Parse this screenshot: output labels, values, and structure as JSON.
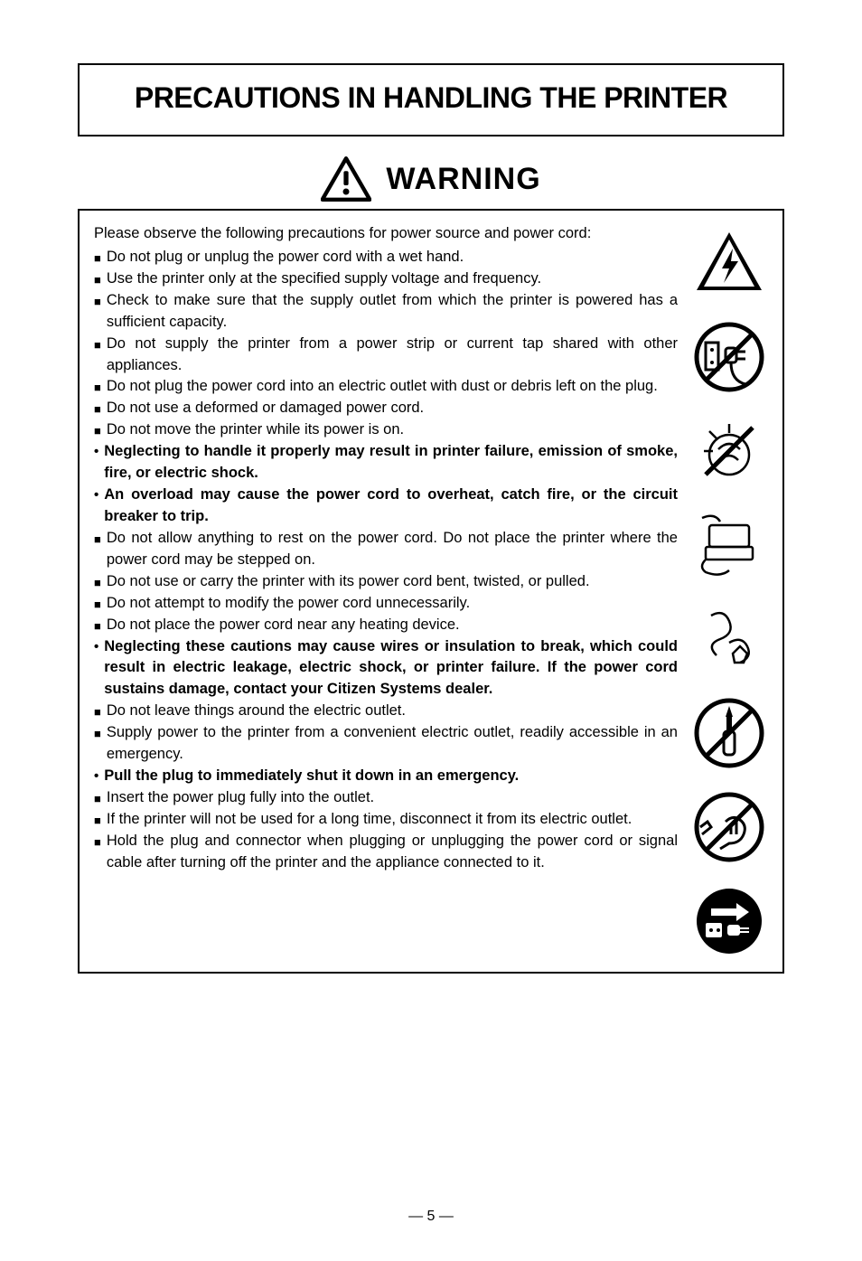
{
  "title": "PRECAUTIONS IN HANDLING THE PRINTER",
  "warning_label": "WARNING",
  "intro": "Please observe the following precautions for power source and power cord:",
  "items": [
    {
      "type": "square",
      "text": "Do not plug or unplug the power cord with a wet hand."
    },
    {
      "type": "square",
      "text": "Use the printer only at the specified supply voltage and frequency."
    },
    {
      "type": "square",
      "text": "Check to make sure that the supply outlet from which the printer is powered has a sufficient capacity."
    },
    {
      "type": "square",
      "text": "Do not supply the printer from a power strip or current tap shared with other appliances."
    },
    {
      "type": "square",
      "text": "Do not plug the power cord into an electric outlet with dust or debris left on the plug."
    },
    {
      "type": "square",
      "text": "Do not use a deformed or damaged power cord."
    },
    {
      "type": "square",
      "text": "Do not move the printer while its power is on."
    },
    {
      "type": "bullet",
      "bold": true,
      "text": "Neglecting to handle it properly may result in printer failure, emission of smoke, fire, or electric shock."
    },
    {
      "type": "bullet",
      "bold": true,
      "text": "An overload may cause the power cord to overheat, catch fire, or the circuit breaker to trip."
    },
    {
      "type": "square",
      "text": "Do not allow anything to rest on the power cord.  Do not place the printer where the power cord may be stepped on."
    },
    {
      "type": "square",
      "text": "Do not use or carry the printer with its power cord bent, twisted, or pulled."
    },
    {
      "type": "square",
      "text": "Do not attempt to modify the power cord unnecessarily."
    },
    {
      "type": "square",
      "text": "Do not place the power cord near any heating device."
    },
    {
      "type": "bullet",
      "bold": true,
      "text": "Neglecting these cautions may cause wires or insulation to break, which could result in electric leakage, electric shock, or printer failure. If the power cord sustains damage, contact your Citizen Systems dealer."
    },
    {
      "type": "square",
      "text": "Do not leave things around the electric outlet."
    },
    {
      "type": "square",
      "text": "Supply power to the printer from a convenient electric outlet, readily accessible in an emergency."
    },
    {
      "type": "bullet",
      "bold": true,
      "text": "Pull the plug to immediately shut it down in an emergency."
    },
    {
      "type": "square",
      "text": "Insert the power plug fully into the outlet."
    },
    {
      "type": "square",
      "text": "If the printer will not be used for a long time, disconnect it from its electric outlet."
    },
    {
      "type": "square",
      "text": "Hold the plug and connector when plugging or unplugging the power cord or signal cable after turning off the printer and the appliance connected to it."
    }
  ],
  "page_number": "— 5 —",
  "colors": {
    "text": "#000000",
    "bg": "#ffffff",
    "border": "#000000"
  },
  "icons": [
    "hazard-triangle-bolt",
    "plug-outlet-prohibit",
    "dust-explosion",
    "cord-printer",
    "cord-bent",
    "screwdriver-prohibit",
    "hand-plug-prohibit",
    "unplug-arrow"
  ]
}
